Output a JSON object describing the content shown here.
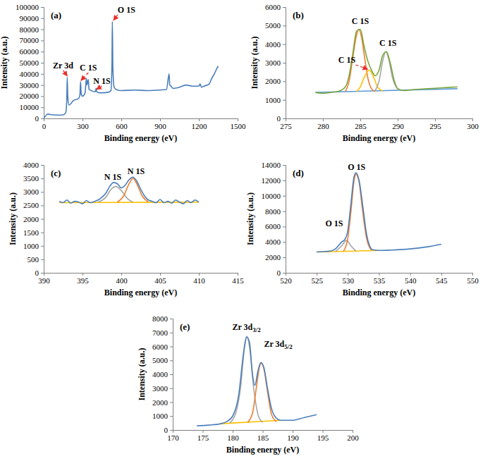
{
  "chart_data": [
    {
      "type": "line",
      "title": "(a)",
      "x_label": "Binding energy (eV)",
      "y_label": "Intensity (a.u.)",
      "xlim": [
        0,
        1500
      ],
      "xticks": [
        0,
        300,
        600,
        900,
        1200,
        1500
      ],
      "ylim": [
        0,
        100000
      ],
      "yticks": [
        0,
        10000,
        20000,
        30000,
        40000,
        50000,
        60000,
        70000,
        80000,
        90000,
        100000
      ],
      "series": [
        {
          "color": "#4a7ebb",
          "x": [
            0,
            20,
            30,
            50,
            100,
            150,
            170,
            178,
            182,
            186,
            195,
            230,
            270,
            280,
            285,
            290,
            300,
            320,
            330,
            334,
            340,
            345,
            350,
            400,
            405,
            410,
            430,
            460,
            500,
            520,
            528,
            531,
            535,
            545,
            560,
            600,
            700,
            800,
            900,
            950,
            970,
            975,
            985,
            1000,
            1050,
            1100,
            1150,
            1200,
            1210,
            1220,
            1240,
            1280,
            1300,
            1320,
            1340,
            1350
          ],
          "values": [
            0,
            3000,
            4000,
            3500,
            3000,
            3200,
            5000,
            15000,
            37000,
            20000,
            12000,
            16000,
            18000,
            21000,
            33000,
            22000,
            20000,
            23000,
            36000,
            30000,
            33000,
            35000,
            26000,
            24000,
            27000,
            24000,
            23000,
            23000,
            23500,
            25000,
            50000,
            87000,
            45000,
            28000,
            26000,
            25000,
            25500,
            25000,
            25500,
            26000,
            40000,
            30000,
            29000,
            27000,
            28000,
            30000,
            29000,
            29000,
            31000,
            28000,
            29000,
            31000,
            36000,
            40000,
            45000,
            47000
          ]
        }
      ],
      "annotations": [
        {
          "text": "Zr 3d",
          "x": 150,
          "y": 45000,
          "arrow": [
            182,
            38000
          ]
        },
        {
          "text": "C 1S",
          "x": 345,
          "y": 43000,
          "arrow": [
            288,
            34000
          ]
        },
        {
          "text": "N 1S",
          "x": 450,
          "y": 31000,
          "arrow": [
            408,
            26000
          ]
        },
        {
          "text": "O 1S",
          "x": 640,
          "y": 95000,
          "arrow": [
            540,
            88000
          ]
        }
      ]
    },
    {
      "type": "line",
      "title": "(b)",
      "x_label": "Binding energy (eV)",
      "y_label": "Intensity (a.u.)",
      "xlim": [
        275,
        300
      ],
      "xticks": [
        275,
        280,
        285,
        290,
        295,
        300
      ],
      "ylim": [
        0,
        6000
      ],
      "yticks": [
        0,
        1000,
        2000,
        3000,
        4000,
        5000,
        6000
      ],
      "series": [
        {
          "color": "#5b9bd5",
          "x": [
            279,
            298
          ],
          "values": [
            1400,
            1600
          ]
        },
        {
          "color": "#ed7d31",
          "x": [
            283,
            283.5,
            284,
            284.5,
            284.8,
            285.2,
            285.5,
            286,
            286.5,
            287
          ],
          "values": [
            1450,
            2000,
            3300,
            4500,
            4800,
            4300,
            3500,
            2200,
            1600,
            1450
          ]
        },
        {
          "color": "#ffc000",
          "x": [
            284.5,
            285,
            285.5,
            286.2,
            286.8,
            287.3,
            288
          ],
          "values": [
            1450,
            1700,
            2200,
            2600,
            2200,
            1700,
            1470
          ]
        },
        {
          "color": "#a5a5a5",
          "x": [
            287,
            287.5,
            288,
            288.4,
            288.8,
            289.3,
            290,
            290.5
          ],
          "values": [
            1500,
            2000,
            3100,
            3600,
            3200,
            2200,
            1600,
            1520
          ]
        },
        {
          "color": "#77a63c",
          "x": [
            279,
            280,
            281,
            282,
            283,
            283.5,
            284,
            284.5,
            285,
            285.5,
            286,
            286.5,
            287,
            287.5,
            288,
            288.5,
            289,
            289.5,
            290,
            291,
            292,
            294,
            296,
            298
          ],
          "values": [
            1400,
            1350,
            1400,
            1450,
            1700,
            2300,
            3500,
            4700,
            4800,
            3900,
            3100,
            2600,
            2300,
            2600,
            3400,
            3600,
            3000,
            2100,
            1600,
            1500,
            1550,
            1600,
            1650,
            1700
          ]
        }
      ],
      "annotations": [
        {
          "text": "C 1S",
          "x": 285,
          "y": 5100
        },
        {
          "text": "C 1S",
          "x": 288.7,
          "y": 3900
        },
        {
          "text": "C 1S",
          "x": 283.2,
          "y": 3000,
          "arrow": [
            286,
            2650
          ]
        }
      ]
    },
    {
      "type": "line",
      "title": "(c)",
      "x_label": "Binding energy (eV)",
      "y_label": "Intensity (a.u.)",
      "xlim": [
        390,
        415
      ],
      "xticks": [
        390,
        395,
        400,
        405,
        410,
        415
      ],
      "ylim": [
        0,
        4000
      ],
      "yticks": [
        0,
        500,
        1000,
        1500,
        2000,
        2500,
        3000,
        3500,
        4000
      ],
      "series": [
        {
          "color": "#ffc000",
          "x": [
            392,
            410
          ],
          "values": [
            2600,
            2620
          ]
        },
        {
          "color": "#a5a5a5",
          "x": [
            397,
            398,
            398.7,
            399.3,
            400,
            400.8,
            401.5
          ],
          "values": [
            2620,
            2800,
            3100,
            3200,
            3050,
            2750,
            2620
          ]
        },
        {
          "color": "#ed7d31",
          "x": [
            399.5,
            400.3,
            401,
            401.5,
            402,
            402.7,
            403.5
          ],
          "values": [
            2620,
            2850,
            3300,
            3500,
            3300,
            2850,
            2620
          ]
        },
        {
          "color": "#4a7ebb",
          "x": [
            392,
            392.5,
            393,
            393.5,
            394,
            394.5,
            395,
            395.5,
            396,
            396.5,
            397,
            397.5,
            398,
            398.5,
            399,
            399.5,
            400,
            400.5,
            401,
            401.5,
            402,
            402.5,
            403,
            403.5,
            404,
            404.5,
            405,
            405.5,
            406,
            406.5,
            407,
            407.5,
            408,
            408.5,
            409,
            409.5,
            410
          ],
          "values": [
            2650,
            2600,
            2700,
            2580,
            2650,
            2620,
            2560,
            2680,
            2600,
            2640,
            2700,
            2800,
            2950,
            3200,
            3350,
            3300,
            3150,
            3250,
            3450,
            3550,
            3400,
            3100,
            2850,
            2700,
            2650,
            2600,
            2720,
            2600,
            2650,
            2580,
            2700,
            2620,
            2560,
            2680,
            2600,
            2700,
            2620
          ]
        }
      ],
      "annotations": [
        {
          "text": "N 1S",
          "x": 398.9,
          "y": 3450
        },
        {
          "text": "N 1S",
          "x": 401.9,
          "y": 3650
        }
      ]
    },
    {
      "type": "line",
      "title": "(d)",
      "x_label": "Binding energy (eV)",
      "y_label": "Intensity (a.u.)",
      "xlim": [
        520,
        550
      ],
      "xticks": [
        520,
        525,
        530,
        535,
        540,
        545,
        550
      ],
      "ylim": [
        0,
        14000
      ],
      "yticks": [
        0,
        2000,
        4000,
        6000,
        8000,
        10000,
        12000,
        14000
      ],
      "series": [
        {
          "color": "#ffc000",
          "x": [
            525,
            535
          ],
          "values": [
            2700,
            2900
          ]
        },
        {
          "color": "#a5a5a5",
          "x": [
            528,
            529,
            529.8,
            530.5,
            531.3
          ],
          "values": [
            2750,
            3500,
            4200,
            3500,
            2800
          ]
        },
        {
          "color": "#ed7d31",
          "x": [
            529.3,
            530,
            530.5,
            531,
            531.3,
            531.8,
            532.3,
            533,
            533.8
          ],
          "values": [
            2800,
            4500,
            8000,
            12000,
            12800,
            11800,
            8500,
            4500,
            2900
          ]
        },
        {
          "color": "#4a7ebb",
          "x": [
            525,
            526,
            527,
            528,
            529,
            529.5,
            530,
            530.5,
            531,
            531.3,
            531.8,
            532.5,
            533,
            533.5,
            534,
            535,
            537,
            540,
            543,
            545
          ],
          "values": [
            2700,
            2750,
            2800,
            3100,
            4000,
            4300,
            5500,
            9000,
            12500,
            13000,
            12000,
            8000,
            5000,
            3500,
            3000,
            2900,
            2950,
            3100,
            3400,
            3700
          ]
        }
      ],
      "annotations": [
        {
          "text": "O 1S",
          "x": 531.4,
          "y": 13400
        },
        {
          "text": "O 1S",
          "x": 527.8,
          "y": 6000
        }
      ]
    },
    {
      "type": "line",
      "title": "(e)",
      "x_label": "Binding energy (eV)",
      "y_label": "Intensity (a.u.)",
      "xlim": [
        170,
        200
      ],
      "xticks": [
        170,
        175,
        180,
        185,
        190,
        195,
        200
      ],
      "ylim": [
        0,
        8000
      ],
      "yticks": [
        0,
        1000,
        2000,
        3000,
        4000,
        5000,
        6000,
        7000,
        8000
      ],
      "series": [
        {
          "color": "#ffc000",
          "x": [
            178,
            188
          ],
          "values": [
            450,
            700
          ]
        },
        {
          "color": "#a5a5a5",
          "x": [
            179.5,
            180.5,
            181.3,
            182,
            182.4,
            182.8,
            183.5,
            184.3,
            185
          ],
          "values": [
            500,
            1200,
            3000,
            6000,
            6700,
            6000,
            3000,
            1000,
            550
          ]
        },
        {
          "color": "#ed7d31",
          "x": [
            182.5,
            183.3,
            184,
            184.5,
            184.8,
            185.2,
            185.8,
            186.5,
            187.3
          ],
          "values": [
            550,
            1200,
            3200,
            4600,
            4800,
            4400,
            2800,
            1100,
            600
          ]
        },
        {
          "color": "#4a7ebb",
          "x": [
            174,
            176,
            178,
            179,
            180,
            181,
            181.8,
            182.3,
            182.8,
            183.3,
            183.7,
            184.2,
            184.7,
            185.2,
            185.8,
            186.5,
            187,
            188,
            190,
            192,
            194
          ],
          "values": [
            300,
            350,
            450,
            600,
            1000,
            2500,
            5500,
            6700,
            6300,
            4000,
            3200,
            4200,
            4850,
            4500,
            3000,
            1500,
            1000,
            700,
            700,
            900,
            1100
          ]
        }
      ],
      "annotations": [
        {
          "text": "Zr 3d",
          "subscript": "3/2",
          "x": 182.3,
          "y": 7200
        },
        {
          "text": "Zr 3d",
          "subscript": "5/2",
          "x": 187.6,
          "y": 6000
        }
      ]
    }
  ]
}
